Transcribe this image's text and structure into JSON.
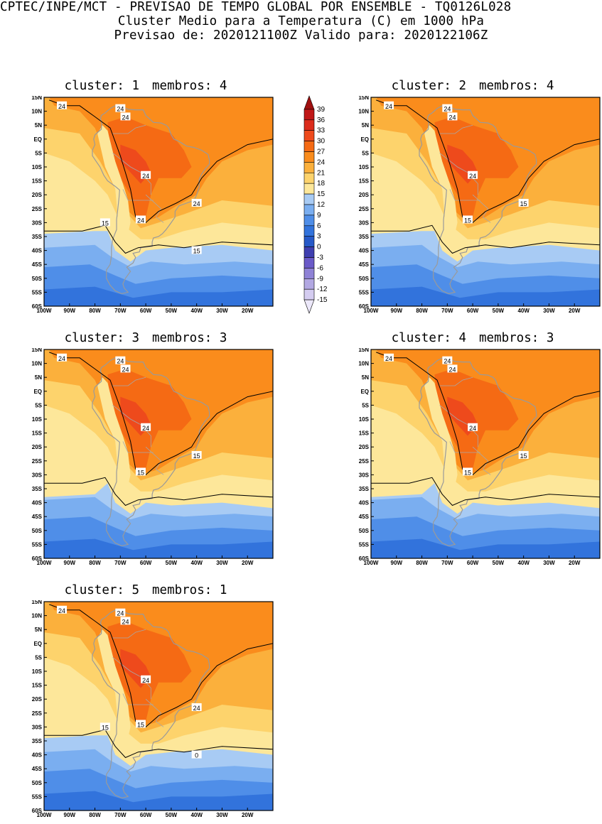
{
  "header": {
    "line1": "CPTEC/INPE/MCT - PREVISAO DE TEMPO GLOBAL POR ENSEMBLE - TQ0126L028",
    "line2": "Cluster Medio para a Temperatura (C) em 1000 hPa",
    "line3": "Previsao de: 2020121100Z   Valido para: 2020122106Z"
  },
  "lat_labels": [
    "15N",
    "10N",
    "5N",
    "EQ",
    "5S",
    "10S",
    "15S",
    "20S",
    "25S",
    "30S",
    "35S",
    "40S",
    "45S",
    "50S",
    "55S",
    "60S"
  ],
  "lon_labels": [
    "100W",
    "90W",
    "80W",
    "70W",
    "60W",
    "50W",
    "40W",
    "30W",
    "20W"
  ],
  "colorbar": {
    "levels": [
      "39",
      "36",
      "33",
      "30",
      "27",
      "24",
      "21",
      "18",
      "15",
      "12",
      "9",
      "6",
      "3",
      "0",
      "-3",
      "-6",
      "-9",
      "-12",
      "-15"
    ],
    "colors": [
      "#a01010",
      "#c01818",
      "#dc2c1c",
      "#ee4a1c",
      "#f56a14",
      "#fa8c1c",
      "#fbb03c",
      "#fdd36c",
      "#fde79a",
      "#a8cbf4",
      "#7aaef0",
      "#4f8ee8",
      "#3273dc",
      "#2659c8",
      "#3f3fb0",
      "#6a5ac8",
      "#8f82d6",
      "#b2a8e2",
      "#d4ccf0",
      "#ece8fa"
    ]
  },
  "clusters": [
    {
      "label": "cluster: 1",
      "membros": "membros: 4",
      "contour_labels": [
        "24",
        "24",
        "24",
        "24",
        "24",
        "24",
        "15",
        "15"
      ]
    },
    {
      "label": "cluster: 2",
      "membros": "membros: 4",
      "contour_labels": [
        "24",
        "24",
        "24",
        "24",
        "15",
        "15"
      ]
    },
    {
      "label": "cluster: 3",
      "membros": "membros: 3",
      "contour_labels": [
        "24",
        "24",
        "24",
        "24",
        "15",
        "15"
      ]
    },
    {
      "label": "cluster: 4",
      "membros": "membros: 3",
      "contour_labels": [
        "24",
        "24",
        "24",
        "24",
        "15",
        "15"
      ]
    },
    {
      "label": "cluster: 5",
      "membros": "membros: 1",
      "contour_labels": [
        "24",
        "24",
        "24",
        "24",
        "24",
        "15",
        "15",
        "0"
      ]
    }
  ]
}
